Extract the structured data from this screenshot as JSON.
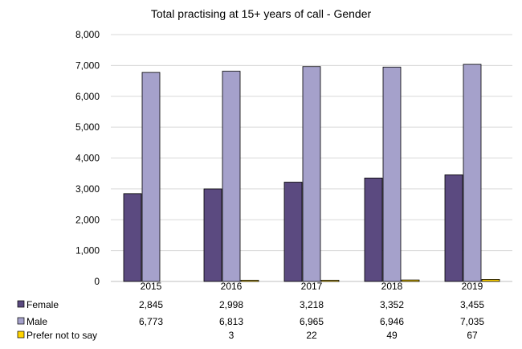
{
  "chart_data": {
    "type": "bar",
    "title": "Total practising at 15+ years of call - Gender",
    "xlabel": "",
    "ylabel": "",
    "categories": [
      "2015",
      "2016",
      "2017",
      "2018",
      "2019"
    ],
    "ylim": [
      0,
      8000
    ],
    "yticks": [
      0,
      1000,
      2000,
      3000,
      4000,
      5000,
      6000,
      7000,
      8000
    ],
    "ytick_labels": [
      "0",
      "1,000",
      "2,000",
      "3,000",
      "4,000",
      "5,000",
      "6,000",
      "7,000",
      "8,000"
    ],
    "grid": true,
    "legend": "data table below chart",
    "series": [
      {
        "name": "Female",
        "color": "#5b4a80",
        "values": [
          2845,
          2998,
          3218,
          3352,
          3455
        ],
        "labels": [
          "2,845",
          "2,998",
          "3,218",
          "3,352",
          "3,455"
        ]
      },
      {
        "name": "Male",
        "color": "#a5a1cb",
        "values": [
          6773,
          6813,
          6965,
          6946,
          7035
        ],
        "labels": [
          "6,773",
          "6,813",
          "6,965",
          "6,946",
          "7,035"
        ]
      },
      {
        "name": "Prefer not to say",
        "color": "#ffd300",
        "values": [
          null,
          3,
          22,
          49,
          67
        ],
        "labels": [
          "",
          "3",
          "22",
          "49",
          "67"
        ]
      }
    ]
  }
}
